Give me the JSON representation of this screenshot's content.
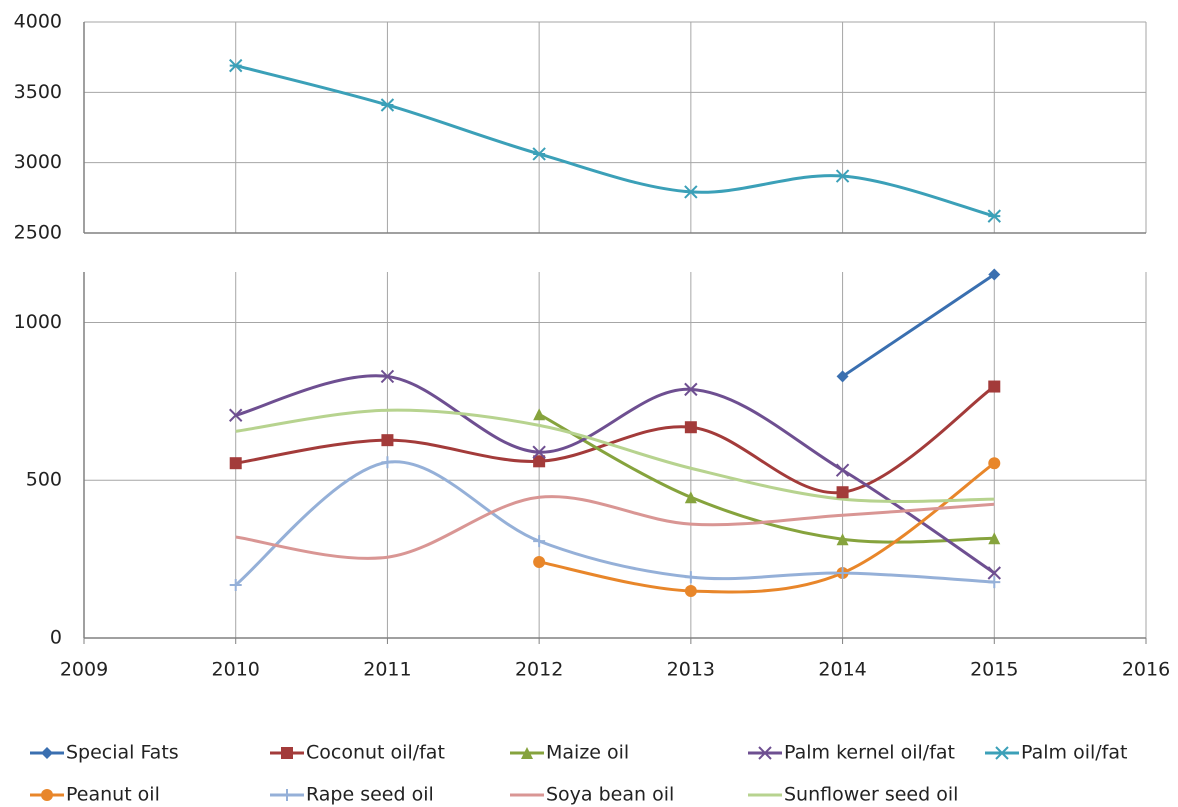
{
  "chart_data": [
    {
      "type": "line",
      "x": [
        2010,
        2011,
        2012,
        2013,
        2014,
        2015
      ],
      "series": [
        {
          "name": "Palm oil/fat",
          "color": "#3ba0b8",
          "marker": "star",
          "values": [
            3690,
            3410,
            3062,
            2792,
            2905,
            2620
          ]
        }
      ],
      "xlim": [
        2009,
        2016
      ],
      "xticks": [
        2009,
        2010,
        2011,
        2012,
        2013,
        2014,
        2015,
        2016
      ],
      "ylim": [
        2500,
        4000
      ],
      "yticks": [
        2500,
        3000,
        3500,
        4000
      ],
      "grid": true,
      "smooth": true
    },
    {
      "type": "line",
      "x": [
        2010,
        2011,
        2012,
        2013,
        2014,
        2015
      ],
      "series": [
        {
          "name": "Special Fats",
          "color": "#3a6fb0",
          "marker": "diamond",
          "values": [
            null,
            null,
            null,
            null,
            829,
            1152
          ]
        },
        {
          "name": "Coconut oil/fat",
          "color": "#a33b3a",
          "marker": "square",
          "values": [
            554,
            627,
            560,
            668,
            462,
            797
          ]
        },
        {
          "name": "Maize oil",
          "color": "#86a33d",
          "marker": "triangle",
          "values": [
            null,
            null,
            709,
            446,
            313,
            316
          ]
        },
        {
          "name": "Palm kernel oil/fat",
          "color": "#6e4f91",
          "marker": "x",
          "values": [
            706,
            829,
            589,
            788,
            532,
            206
          ]
        },
        {
          "name": "Peanut oil",
          "color": "#e8862a",
          "marker": "circle",
          "values": [
            null,
            null,
            241,
            149,
            206,
            554
          ]
        },
        {
          "name": "Rape seed oil",
          "color": "#95b0d8",
          "marker": "plus",
          "values": [
            168,
            557,
            307,
            193,
            206,
            177
          ]
        },
        {
          "name": "Soya bean oil",
          "color": "#d99694",
          "marker": "none",
          "values": [
            320,
            256,
            446,
            361,
            389,
            424
          ]
        },
        {
          "name": "Sunflower seed oil",
          "color": "#b7d38f",
          "marker": "none",
          "values": [
            655,
            722,
            674,
            538,
            440,
            440
          ]
        }
      ],
      "xlim": [
        2009,
        2016
      ],
      "xticks": [
        2009,
        2010,
        2011,
        2012,
        2013,
        2014,
        2015,
        2016
      ],
      "ylim": [
        0,
        1160
      ],
      "yticks": [
        0,
        500,
        1000
      ],
      "grid": true,
      "smooth": true
    }
  ]
}
